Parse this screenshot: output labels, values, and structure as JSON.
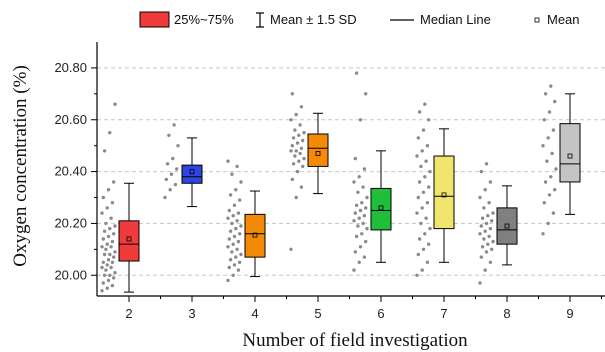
{
  "chart_data": {
    "type": "box",
    "xlabel": "Number of field investigation",
    "ylabel": "Oxygen concentration (%)",
    "ylim": [
      19.92,
      20.9
    ],
    "ytick_values": [
      20.0,
      20.2,
      20.4,
      20.6,
      20.8
    ],
    "ytick_labels": [
      "20.00",
      "20.20",
      "20.40",
      "20.60",
      "20.80"
    ],
    "categories": [
      "2",
      "3",
      "4",
      "5",
      "6",
      "7",
      "8",
      "9"
    ],
    "grid": "horizontal dashed",
    "legend": {
      "placement": "top",
      "items": [
        {
          "kind": "box",
          "label": "25%~75%",
          "color": "#ef3b3b"
        },
        {
          "kind": "whisker",
          "label": "Mean ± 1.5 SD"
        },
        {
          "kind": "median",
          "label": "Median Line"
        },
        {
          "kind": "mean",
          "label": "Mean"
        }
      ]
    },
    "boxes": [
      {
        "category": "2",
        "color": "#ef3b3b",
        "q1": 20.055,
        "median": 20.12,
        "q3": 20.21,
        "mean": 20.14,
        "whisker_low": 19.935,
        "whisker_high": 20.355,
        "points": [
          19.94,
          19.95,
          19.96,
          19.97,
          19.98,
          19.99,
          20.0,
          20.0,
          20.01,
          20.02,
          20.03,
          20.03,
          20.04,
          20.05,
          20.05,
          20.06,
          20.07,
          20.08,
          20.08,
          20.09,
          20.1,
          20.11,
          20.11,
          20.12,
          20.13,
          20.14,
          20.15,
          20.16,
          20.17,
          20.18,
          20.19,
          20.2,
          20.22,
          20.24,
          20.26,
          20.28,
          20.3,
          20.33,
          20.36,
          20.48,
          20.55,
          20.66
        ]
      },
      {
        "category": "3",
        "color": "#2f44e0",
        "q1": 20.355,
        "median": 20.38,
        "q3": 20.425,
        "mean": 20.4,
        "whisker_low": 20.265,
        "whisker_high": 20.53,
        "points": [
          20.3,
          20.33,
          20.35,
          20.37,
          20.39,
          20.41,
          20.43,
          20.45,
          20.5,
          20.54,
          20.58
        ]
      },
      {
        "category": "4",
        "color": "#f58a07",
        "q1": 20.07,
        "median": 20.16,
        "q3": 20.235,
        "mean": 20.155,
        "whisker_low": 19.995,
        "whisker_high": 20.325,
        "points": [
          19.98,
          20.0,
          20.02,
          20.03,
          20.04,
          20.05,
          20.06,
          20.07,
          20.08,
          20.09,
          20.1,
          20.11,
          20.12,
          20.13,
          20.14,
          20.15,
          20.16,
          20.17,
          20.18,
          20.19,
          20.2,
          20.21,
          20.22,
          20.23,
          20.24,
          20.25,
          20.27,
          20.29,
          20.31,
          20.33,
          20.36,
          20.39,
          20.42,
          20.44
        ]
      },
      {
        "category": "5",
        "color": "#f58a07",
        "q1": 20.42,
        "median": 20.49,
        "q3": 20.545,
        "mean": 20.47,
        "whisker_low": 20.315,
        "whisker_high": 20.625,
        "points": [
          20.1,
          20.3,
          20.34,
          20.37,
          20.4,
          20.42,
          20.43,
          20.44,
          20.45,
          20.46,
          20.47,
          20.48,
          20.48,
          20.49,
          20.5,
          20.51,
          20.52,
          20.53,
          20.54,
          20.55,
          20.56,
          20.58,
          20.6,
          20.62,
          20.65,
          20.7
        ]
      },
      {
        "category": "6",
        "color": "#1fbf3a",
        "q1": 20.175,
        "median": 20.25,
        "q3": 20.335,
        "mean": 20.26,
        "whisker_low": 20.05,
        "whisker_high": 20.48,
        "points": [
          20.02,
          20.05,
          20.07,
          20.09,
          20.11,
          20.13,
          20.15,
          20.16,
          20.18,
          20.19,
          20.2,
          20.21,
          20.22,
          20.23,
          20.24,
          20.25,
          20.26,
          20.27,
          20.28,
          20.3,
          20.32,
          20.34,
          20.36,
          20.38,
          20.41,
          20.45,
          20.6,
          20.7,
          20.78
        ]
      },
      {
        "category": "7",
        "color": "#f0e46a",
        "q1": 20.18,
        "median": 20.305,
        "q3": 20.46,
        "mean": 20.31,
        "whisker_low": 20.05,
        "whisker_high": 20.565,
        "points": [
          20.0,
          20.02,
          20.05,
          20.08,
          20.1,
          20.12,
          20.14,
          20.16,
          20.18,
          20.2,
          20.22,
          20.24,
          20.26,
          20.28,
          20.3,
          20.32,
          20.34,
          20.36,
          20.38,
          20.4,
          20.42,
          20.44,
          20.46,
          20.48,
          20.5,
          20.53,
          20.56,
          20.6,
          20.63,
          20.66
        ]
      },
      {
        "category": "8",
        "color": "#808080",
        "q1": 20.12,
        "median": 20.175,
        "q3": 20.26,
        "mean": 20.19,
        "whisker_low": 20.04,
        "whisker_high": 20.345,
        "points": [
          19.97,
          20.02,
          20.05,
          20.07,
          20.09,
          20.1,
          20.11,
          20.12,
          20.13,
          20.14,
          20.15,
          20.16,
          20.17,
          20.18,
          20.19,
          20.2,
          20.21,
          20.22,
          20.23,
          20.24,
          20.26,
          20.28,
          20.3,
          20.33,
          20.36,
          20.4,
          20.43
        ]
      },
      {
        "category": "9",
        "color": "#c4c4c4",
        "q1": 20.36,
        "median": 20.43,
        "q3": 20.585,
        "mean": 20.46,
        "whisker_low": 20.235,
        "whisker_high": 20.7,
        "points": [
          20.16,
          20.2,
          20.24,
          20.28,
          20.31,
          20.33,
          20.36,
          20.38,
          20.41,
          20.44,
          20.47,
          20.5,
          20.53,
          20.56,
          20.6,
          20.63,
          20.67,
          20.7,
          20.73
        ]
      }
    ]
  }
}
